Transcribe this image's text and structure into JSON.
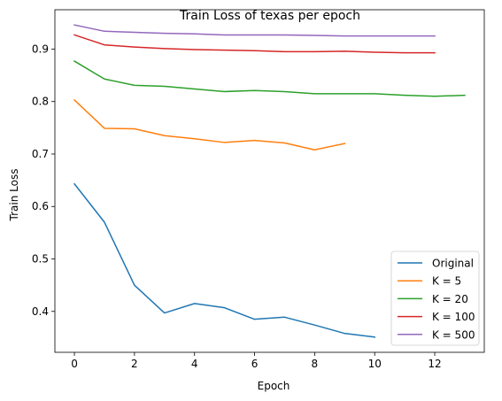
{
  "chart_data": {
    "type": "line",
    "title": "Train Loss of texas per epoch",
    "xlabel": "Epoch",
    "ylabel": "Train Loss",
    "xlim": [
      -0.65,
      13.65
    ],
    "ylim": [
      0.322,
      0.975
    ],
    "xticks": [
      0,
      2,
      4,
      6,
      8,
      10,
      12
    ],
    "yticks": [
      0.4,
      0.5,
      0.6,
      0.7,
      0.8,
      0.9
    ],
    "ytick_labels": [
      "0.4",
      "0.5",
      "0.6",
      "0.7",
      "0.8",
      "0.9"
    ],
    "grid": false,
    "legend_position": "lower-right",
    "series": [
      {
        "name": "Original",
        "color": "#1f77b4",
        "x": [
          0,
          1,
          2,
          3,
          4,
          5,
          6,
          7,
          8,
          9,
          10
        ],
        "y": [
          0.643,
          0.57,
          0.45,
          0.397,
          0.415,
          0.407,
          0.385,
          0.389,
          0.374,
          0.358,
          0.351
        ]
      },
      {
        "name": "K = 5",
        "color": "#ff7f0e",
        "x": [
          0,
          1,
          2,
          3,
          4,
          5,
          6,
          7,
          8,
          9
        ],
        "y": [
          0.803,
          0.749,
          0.748,
          0.735,
          0.729,
          0.722,
          0.726,
          0.721,
          0.708,
          0.72
        ]
      },
      {
        "name": "K = 20",
        "color": "#2ca02c",
        "x": [
          0,
          1,
          2,
          3,
          4,
          5,
          6,
          7,
          8,
          9,
          10,
          11,
          12,
          13
        ],
        "y": [
          0.877,
          0.843,
          0.831,
          0.829,
          0.824,
          0.819,
          0.821,
          0.819,
          0.815,
          0.815,
          0.815,
          0.812,
          0.81,
          0.812
        ]
      },
      {
        "name": "K = 100",
        "color": "#d62728",
        "x": [
          0,
          1,
          2,
          3,
          4,
          5,
          6,
          7,
          8,
          9,
          10,
          11,
          12
        ],
        "y": [
          0.927,
          0.908,
          0.904,
          0.901,
          0.899,
          0.898,
          0.897,
          0.895,
          0.895,
          0.896,
          0.894,
          0.893,
          0.893
        ]
      },
      {
        "name": "K = 500",
        "color": "#9467bd",
        "x": [
          0,
          1,
          2,
          3,
          4,
          5,
          6,
          7,
          8,
          9,
          10,
          11,
          12
        ],
        "y": [
          0.946,
          0.934,
          0.932,
          0.93,
          0.929,
          0.927,
          0.927,
          0.927,
          0.926,
          0.925,
          0.925,
          0.925,
          0.925
        ]
      }
    ]
  }
}
